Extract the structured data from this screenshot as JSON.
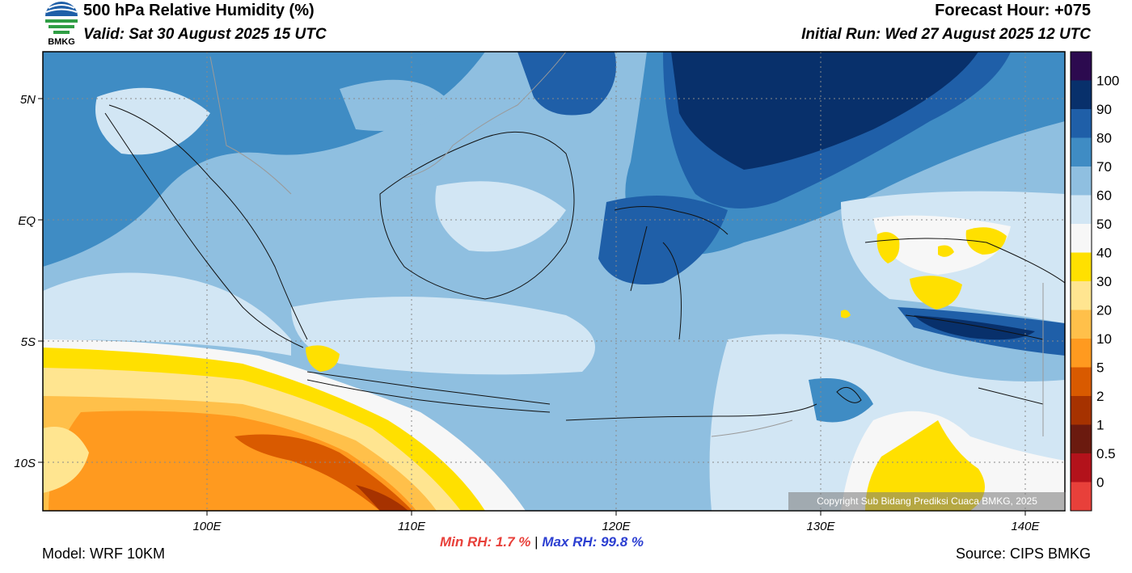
{
  "header": {
    "title": "500 hPa Relative Humidity (%)",
    "valid": "Valid: Sat 30 August 2025 15 UTC",
    "forecast_hour": "Forecast Hour: +075",
    "initial_run": "Initial Run: Wed 27 August 2025 12 UTC",
    "logo_text": "BMKG"
  },
  "map": {
    "lat_labels": [
      "5N",
      "EQ",
      "5S",
      "10S"
    ],
    "lon_labels": [
      "100E",
      "110E",
      "120E",
      "130E",
      "140E"
    ],
    "copyright": "Copyright Sub Bidang Prediksi Cuaca BMKG, 2025"
  },
  "colorbar": {
    "labels": [
      "100",
      "90",
      "80",
      "70",
      "60",
      "50",
      "40",
      "30",
      "20",
      "10",
      "5",
      "2",
      "1",
      "0.5",
      "0"
    ],
    "colors": [
      "#2c0a4f",
      "#08306b",
      "#1f5fa8",
      "#3f8cc4",
      "#8fbfe0",
      "#d2e6f4",
      "#f7f7f7",
      "#ffe000",
      "#ffe590",
      "#ffc04a",
      "#ff9a1f",
      "#d95a00",
      "#a63200",
      "#6b1a0f",
      "#b3121b",
      "#e8403a"
    ]
  },
  "footer": {
    "model": "Model: WRF 10KM",
    "source": "Source: CIPS BMKG",
    "min_label": "Min RH:",
    "min_value": "1.7 %",
    "separator": "|",
    "max_label": "Max RH:",
    "max_value": "99.8 %"
  }
}
